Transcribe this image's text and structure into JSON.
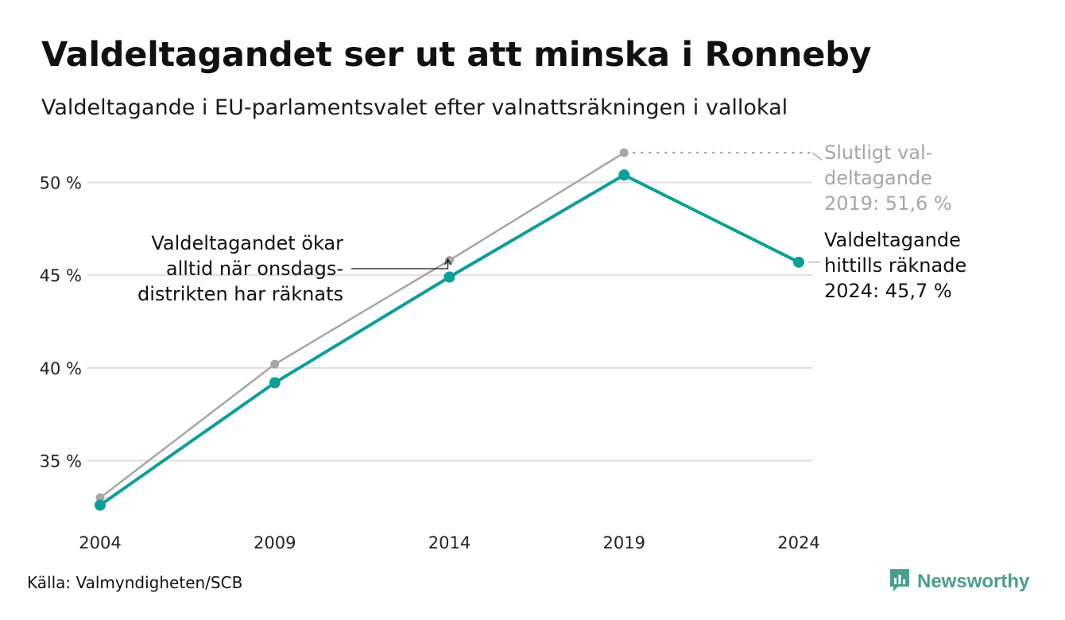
{
  "header": {
    "title": "Valdeltagandet ser ut att minska i Ronneby",
    "subtitle": "Valdeltagande i EU-parlamentsvalet efter valnattsräkningen i vallokal"
  },
  "chart_data": {
    "type": "line",
    "x": [
      "2004",
      "2009",
      "2014",
      "2019",
      "2024"
    ],
    "ylim": [
      32,
      52
    ],
    "y_ticks": [
      35,
      40,
      45,
      50
    ],
    "y_tick_labels": [
      "35 %",
      "40 %",
      "45 %",
      "50 %"
    ],
    "grid": true,
    "series": [
      {
        "key": "final",
        "color": "#a6a6a6",
        "values": [
          33.0,
          40.2,
          45.8,
          51.6,
          null
        ]
      },
      {
        "key": "election_night",
        "color": "#0e9e96",
        "values": [
          32.6,
          39.2,
          44.9,
          50.4,
          45.7
        ]
      }
    ],
    "annotations": {
      "final_2019": [
        "Slutligt val-",
        "deltagande",
        "2019: 51,6 %"
      ],
      "current_2024": [
        "Valdeltagande",
        "hittills räknade",
        "2024: 45,7 %"
      ],
      "wednesday": [
        "Valdeltagandet ökar",
        "alltid när onsdags-",
        "distrikten har räknats"
      ]
    }
  },
  "footer": {
    "source": "Källa: Valmyndigheten/SCB",
    "brand": "Newsworthy",
    "brand_color": "#4a9e8f"
  },
  "icons": {
    "brand": "newsworthy-logo-icon"
  }
}
